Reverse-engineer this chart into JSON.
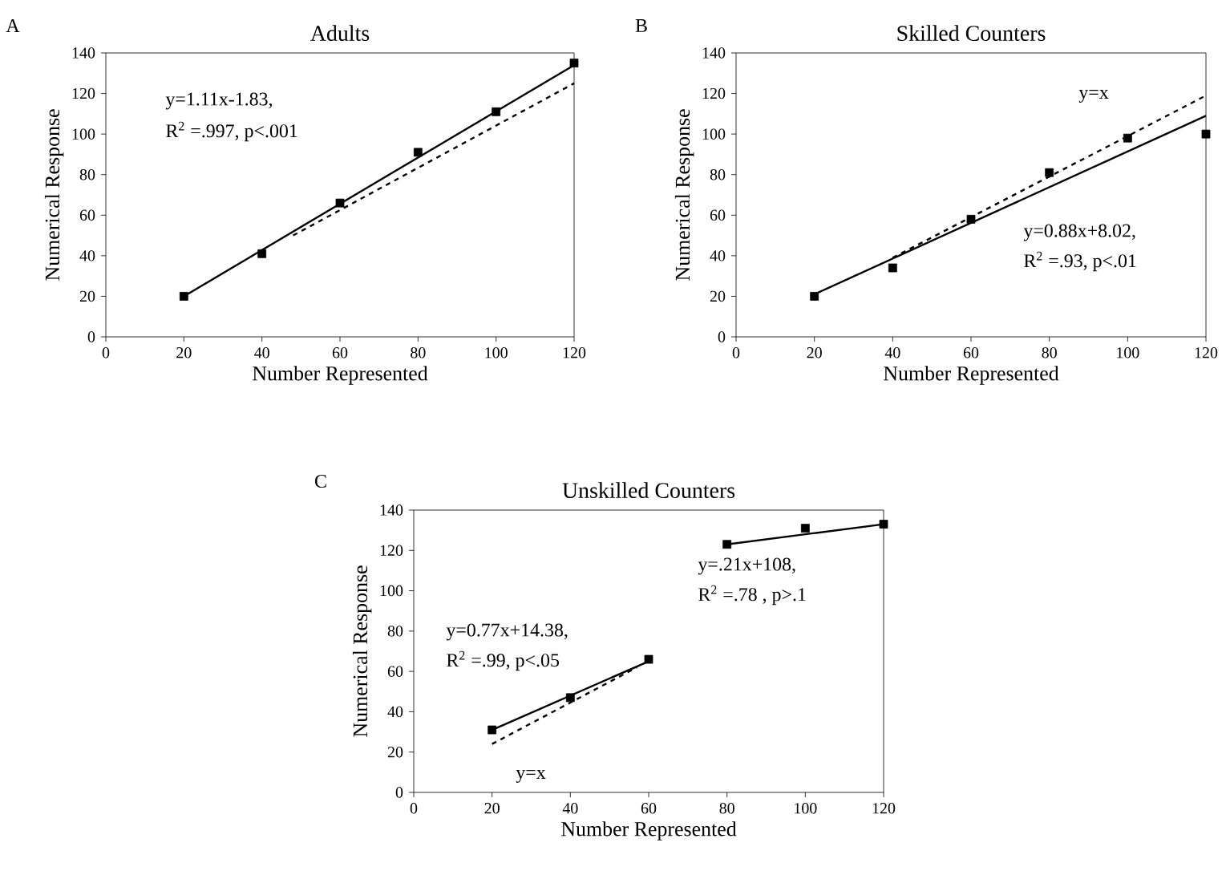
{
  "chart_data": [
    {
      "type": "scatter",
      "title": "Adults",
      "xlabel": "Number Represented",
      "ylabel": "Numerical Response",
      "annotations": [
        "A",
        "y=1.11x-1.83,",
        "R$^{2}$ =.997, p<.001"
      ],
      "xlim": [
        0,
        120
      ],
      "ylim": [
        0,
        140
      ],
      "xticks": [
        0,
        20,
        40,
        60,
        80,
        100,
        120
      ],
      "yticks": [
        0,
        20,
        40,
        60,
        80,
        100,
        120,
        140
      ],
      "series": [
        {
          "marker": "square",
          "color": "#000000",
          "x": [
            20,
            40,
            60,
            80,
            100,
            120
          ],
          "values": [
            20,
            41,
            66,
            91,
            111,
            135
          ]
        },
        {
          "type": "line",
          "marker": "none",
          "line_style": "solid",
          "color": "#000000",
          "x": [
            20,
            120
          ],
          "values": [
            20,
            134
          ]
        },
        {
          "type": "line",
          "marker": "none",
          "line_style": "dashed",
          "color": "#000000",
          "x": [
            48,
            120
          ],
          "values": [
            50,
            125
          ]
        }
      ]
    },
    {
      "type": "scatter",
      "title": "Skilled Counters",
      "xlabel": "Number Represented",
      "ylabel": "Numerical Response",
      "annotations": [
        "B",
        "y=x",
        "y=0.88x+8.02,",
        "R$^{2}$ =.93, p<.01"
      ],
      "xlim": [
        0,
        120
      ],
      "ylim": [
        0,
        140
      ],
      "xticks": [
        0,
        20,
        40,
        60,
        80,
        100,
        120
      ],
      "yticks": [
        0,
        20,
        40,
        60,
        80,
        100,
        120,
        140
      ],
      "series": [
        {
          "marker": "square",
          "color": "#000000",
          "x": [
            20,
            40,
            60,
            80,
            100,
            120
          ],
          "values": [
            20,
            34,
            58,
            81,
            98,
            100
          ]
        },
        {
          "type": "line",
          "marker": "none",
          "line_style": "solid",
          "color": "#000000",
          "x": [
            20,
            120
          ],
          "values": [
            21,
            109
          ]
        },
        {
          "type": "line",
          "marker": "none",
          "line_style": "dashed",
          "color": "#000000",
          "x": [
            40,
            120
          ],
          "values": [
            39,
            119
          ]
        }
      ]
    },
    {
      "type": "scatter",
      "title": "Unskilled Counters",
      "xlabel": "Number Represented",
      "ylabel": "Numerical Response",
      "annotations": [
        "C",
        "y=0.77x+14.38,",
        "R$^{2}$ =.99, p<.05",
        "y=.21x+108,",
        "R$^{2}$ =.78 , p>.1",
        "y=x"
      ],
      "xlim": [
        0,
        120
      ],
      "ylim": [
        0,
        140
      ],
      "xticks": [
        0,
        20,
        40,
        60,
        80,
        100,
        120
      ],
      "yticks": [
        0,
        20,
        40,
        60,
        80,
        100,
        120,
        140
      ],
      "series": [
        {
          "marker": "square",
          "color": "#000000",
          "x": [
            20,
            40,
            60,
            80,
            100,
            120
          ],
          "values": [
            31,
            47,
            66,
            123,
            131,
            133
          ]
        },
        {
          "type": "line",
          "marker": "none",
          "line_style": "solid",
          "color": "#000000",
          "x": [
            20,
            60
          ],
          "values": [
            31,
            65
          ]
        },
        {
          "type": "line",
          "marker": "none",
          "line_style": "solid",
          "color": "#000000",
          "x": [
            80,
            120
          ],
          "values": [
            123,
            133
          ]
        },
        {
          "type": "line",
          "marker": "none",
          "line_style": "dashed",
          "color": "#000000",
          "x": [
            20,
            57
          ],
          "values": [
            24,
            62
          ]
        }
      ]
    }
  ]
}
